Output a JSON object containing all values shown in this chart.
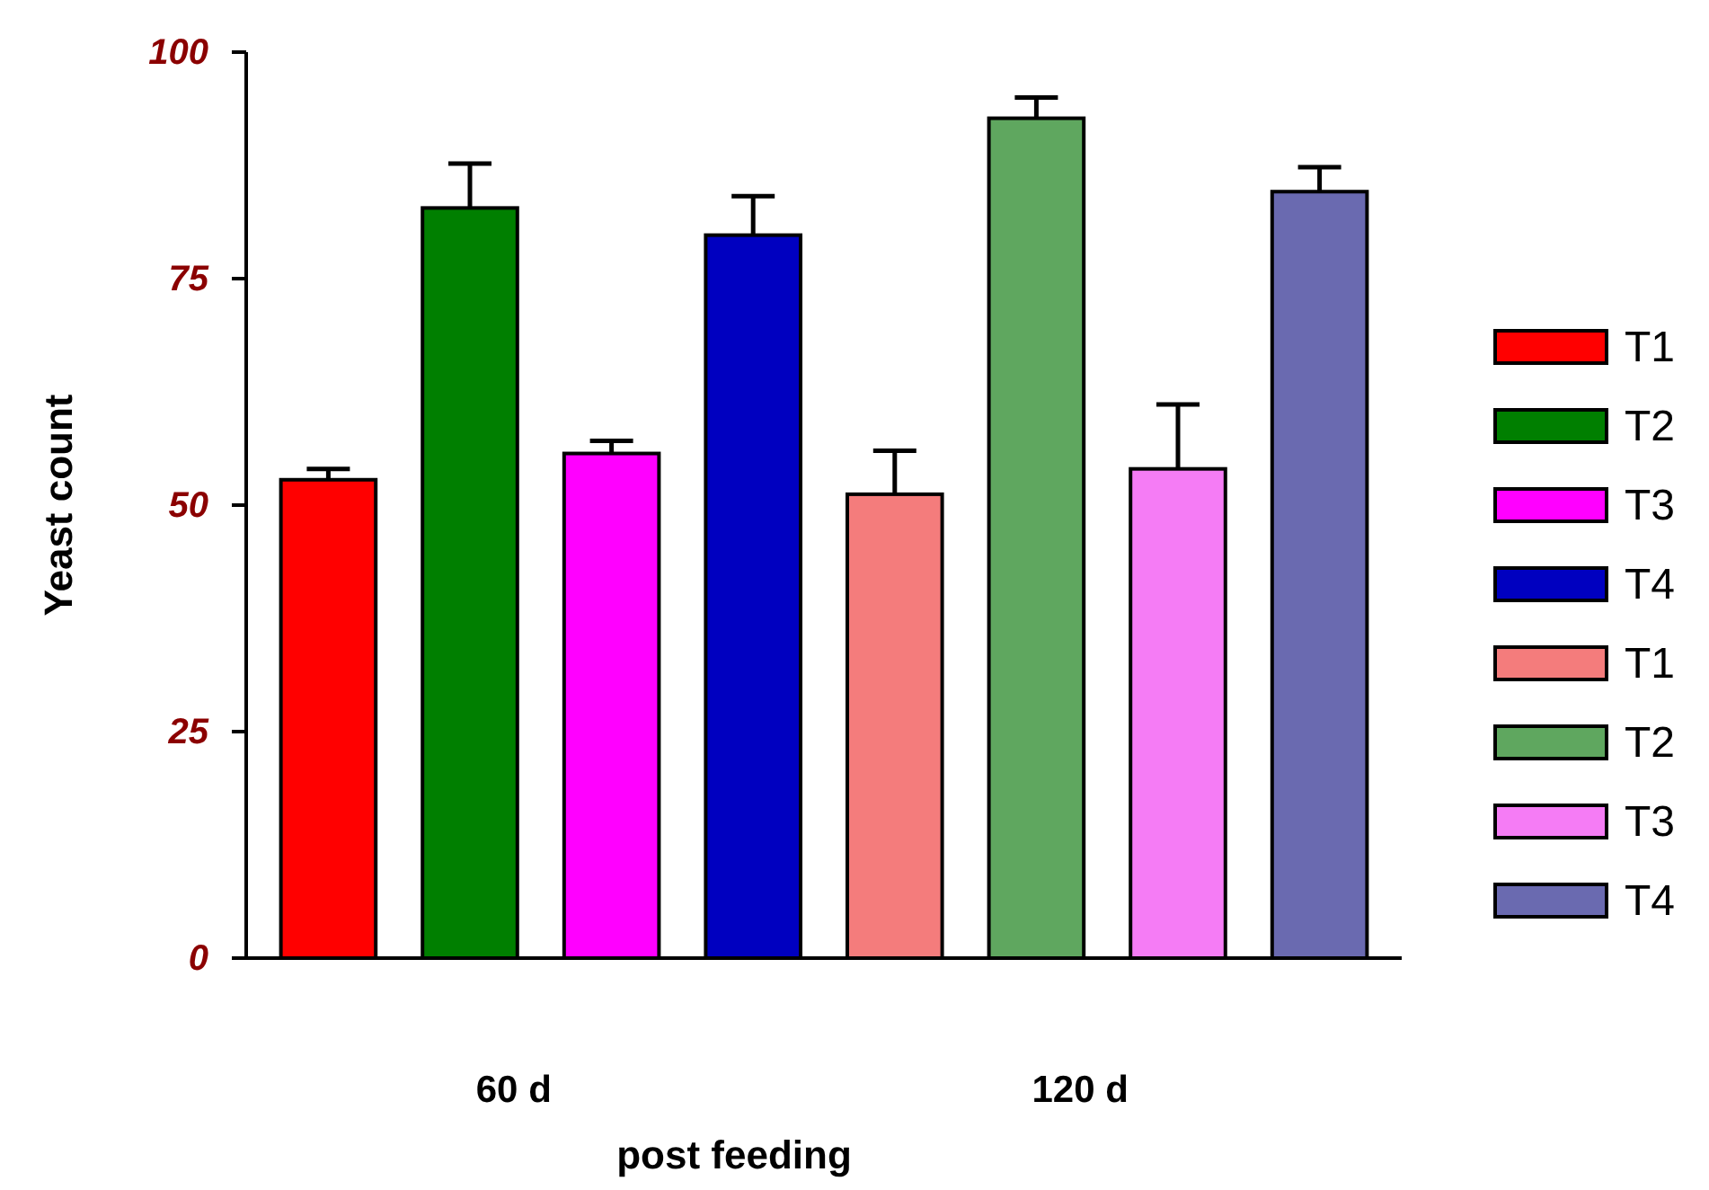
{
  "chart_data": {
    "type": "bar",
    "xlabel": "post feeding",
    "ylabel": "Yeast count",
    "categories": [
      "60 d",
      "120 d"
    ],
    "ylim": [
      0,
      100
    ],
    "yticks": [
      0,
      25,
      50,
      75,
      100
    ],
    "grid": false,
    "legend": "right",
    "series": [
      {
        "name": "T1",
        "color": "#ff0000",
        "values": [
          52.8,
          null
        ],
        "errors": [
          [
            52.8,
            54.0
          ],
          null
        ]
      },
      {
        "name": "T2",
        "color": "#007f00",
        "values": [
          82.8,
          null
        ],
        "errors": [
          [
            82.8,
            87.7
          ],
          null
        ]
      },
      {
        "name": "T3",
        "color": "#ff00ff",
        "values": [
          55.7,
          null
        ],
        "errors": [
          [
            55.7,
            57.1
          ],
          null
        ]
      },
      {
        "name": "T4",
        "color": "#0000c0",
        "values": [
          79.8,
          null
        ],
        "errors": [
          [
            79.8,
            84.1
          ],
          null
        ]
      },
      {
        "name": "T1",
        "color": "#f47c7c",
        "values": [
          null,
          51.2
        ],
        "errors": [
          null,
          [
            51.2,
            56.0
          ]
        ]
      },
      {
        "name": "T2",
        "color": "#5fa75f",
        "values": [
          null,
          92.7
        ],
        "errors": [
          null,
          [
            92.7,
            95.0
          ]
        ]
      },
      {
        "name": "T3",
        "color": "#f57cf5",
        "values": [
          null,
          54.0
        ],
        "errors": [
          null,
          [
            54.0,
            61.1
          ]
        ]
      },
      {
        "name": "T4",
        "color": "#6a6ab0",
        "values": [
          null,
          84.6
        ],
        "errors": [
          null,
          [
            84.6,
            87.3
          ]
        ]
      }
    ]
  }
}
